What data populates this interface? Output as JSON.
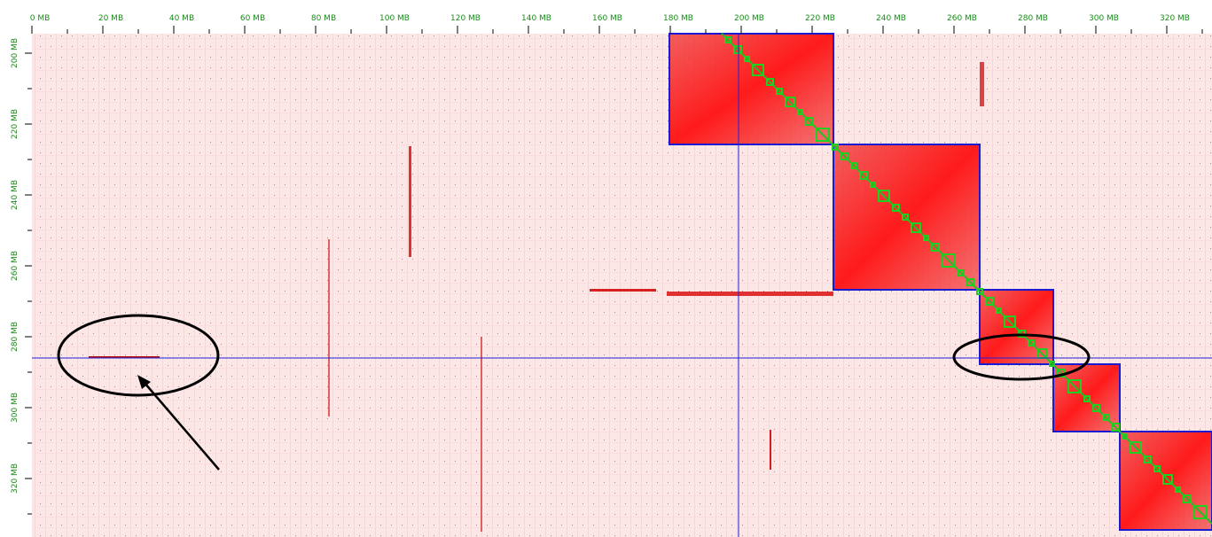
{
  "x_ruler": {
    "labels": [
      "0 MB",
      "20 MB",
      "40 MB",
      "60 MB",
      "80 MB",
      "100 MB",
      "120 MB",
      "140 MB",
      "160 MB",
      "180 MB",
      "200 MB",
      "220 MB",
      "240 MB",
      "260 MB",
      "280 MB",
      "300 MB",
      "320 MB"
    ]
  },
  "y_ruler": {
    "labels": [
      "200 MB",
      "220 MB",
      "240 MB",
      "260 MB",
      "280 MB",
      "300 MB",
      "320 MB"
    ]
  }
}
